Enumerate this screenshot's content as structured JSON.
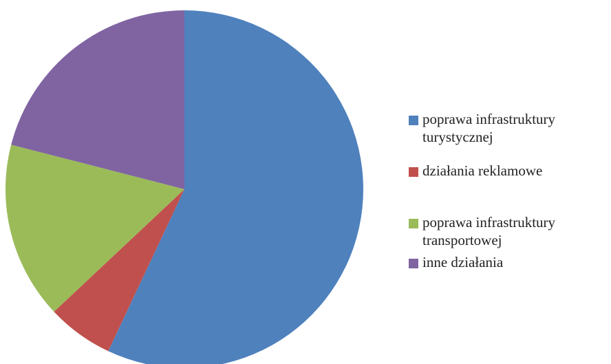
{
  "chart_data": {
    "type": "pie",
    "categories": [
      "poprawa infrastruktury turystycznej",
      "działania reklamowe",
      "poprawa infrastruktury transportowej",
      "inne działania"
    ],
    "values": [
      57,
      6,
      16,
      21
    ],
    "colors": [
      "#4f81bd",
      "#c0504d",
      "#9bbb59",
      "#8064a2"
    ],
    "legend": "right"
  }
}
